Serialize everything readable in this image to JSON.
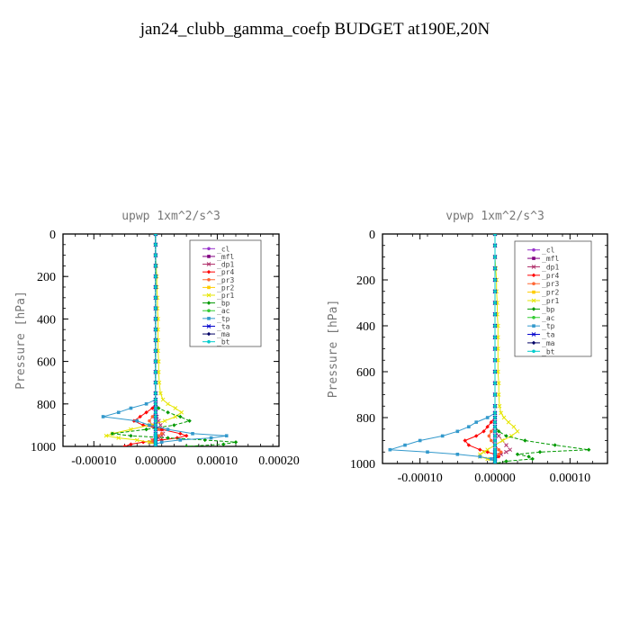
{
  "page_title": "jan24_clubb_gamma_coefp  BUDGET at190E,20N",
  "chart_data": [
    {
      "type": "line",
      "title": "upwp  1xm^2/s^3",
      "ylabel": "Pressure [hPa]",
      "xlabel": "",
      "xlim": [
        -0.00015,
        0.0002
      ],
      "ylim": [
        1000,
        0
      ],
      "xticks": [
        -0.0001,
        0.0,
        0.0001,
        0.0002
      ],
      "xtick_labels": [
        "-0.00010",
        "0.00000",
        "0.00010",
        "0.00020"
      ],
      "yticks": [
        0,
        200,
        400,
        600,
        800,
        1000
      ],
      "ytick_labels": [
        "0",
        "200",
        "400",
        "600",
        "800",
        "1000"
      ],
      "grid": false,
      "legend_position": "top-right",
      "pressure": [
        0,
        50,
        100,
        150,
        200,
        250,
        300,
        350,
        400,
        450,
        500,
        550,
        600,
        650,
        700,
        750,
        780,
        800,
        820,
        840,
        860,
        880,
        900,
        920,
        940,
        950,
        960,
        970,
        980,
        990,
        1000
      ],
      "series": [
        {
          "name": "_cl",
          "color": "#9933cc",
          "values": [
            0,
            0,
            0,
            0,
            0,
            0,
            0,
            0,
            0,
            0,
            0,
            0,
            0,
            0,
            0,
            0,
            0,
            0,
            0,
            0,
            0,
            0,
            0,
            0,
            0,
            0,
            0,
            0,
            0,
            0,
            0
          ]
        },
        {
          "name": "_mfl",
          "color": "#800080",
          "values": [
            0,
            0,
            0,
            0,
            0,
            0,
            0,
            0,
            0,
            0,
            0,
            0,
            0,
            0,
            0,
            0,
            0,
            0,
            0,
            0,
            0,
            0,
            0,
            0,
            0,
            0,
            0,
            0,
            0,
            0,
            0
          ]
        },
        {
          "name": "_dp1",
          "color": "#b0306a",
          "values": [
            0,
            0,
            0,
            0,
            0,
            0,
            0,
            0,
            0,
            0,
            0,
            0,
            0,
            0,
            0,
            0,
            0,
            0,
            0,
            0,
            2e-06,
            5e-06,
            8e-06,
            1e-05,
            1.2e-05,
            1e-05,
            5e-06,
            -5e-06,
            -8e-06,
            0,
            0
          ]
        },
        {
          "name": "_pr4",
          "color": "#ff0000",
          "values": [
            0,
            0,
            0,
            0,
            0,
            0,
            0,
            0,
            0,
            0,
            0,
            0,
            0,
            0,
            0,
            0,
            0,
            0,
            -5e-06,
            -1.5e-05,
            -2.5e-05,
            -3.5e-05,
            -2e-05,
            1e-05,
            4e-05,
            5e-05,
            3.5e-05,
            1e-05,
            -2e-05,
            -4e-05,
            -5e-05
          ]
        },
        {
          "name": "_pr3",
          "color": "#ff6633",
          "values": [
            0,
            0,
            0,
            0,
            0,
            0,
            0,
            0,
            0,
            0,
            0,
            0,
            0,
            0,
            0,
            0,
            0,
            0,
            0,
            0,
            -5e-06,
            -1e-05,
            -5e-06,
            5e-06,
            1e-05,
            5e-06,
            0,
            -5e-06,
            -5e-06,
            0,
            0
          ]
        },
        {
          "name": "_pr2",
          "color": "#ffcc00",
          "values": [
            0,
            0,
            0,
            0,
            0,
            0,
            0,
            0,
            0,
            0,
            0,
            0,
            0,
            0,
            0,
            0,
            0,
            0,
            0,
            0,
            0,
            0,
            0,
            0,
            0,
            0,
            0,
            0,
            0,
            0,
            0
          ]
        },
        {
          "name": "_pr1",
          "color": "#e6e600",
          "values": [
            0,
            0,
            0,
            1e-06,
            2e-06,
            2e-06,
            3e-06,
            3e-06,
            4e-06,
            4e-06,
            4e-06,
            4e-06,
            5e-06,
            5e-06,
            6e-06,
            8e-06,
            1.2e-05,
            2e-05,
            3.2e-05,
            4.2e-05,
            3.2e-05,
            1.5e-05,
            -1e-05,
            -4e-05,
            -7e-05,
            -8e-05,
            -6e-05,
            -3e-05,
            -1e-05,
            0,
            0
          ]
        },
        {
          "name": "_bp",
          "color": "#009900",
          "values": [
            0,
            0,
            0,
            0,
            0,
            0,
            0,
            0,
            0,
            0,
            0,
            0,
            0,
            0,
            0,
            0,
            0,
            0,
            5e-06,
            2e-05,
            4e-05,
            5.5e-05,
            3e-05,
            -1.5e-05,
            -7e-05,
            -4e-05,
            2e-05,
            8e-05,
            0.00013,
            0.00011,
            5e-05
          ]
        },
        {
          "name": "_ac",
          "color": "#33cc33",
          "values": [
            0,
            0,
            0,
            0,
            0,
            0,
            0,
            0,
            0,
            0,
            0,
            0,
            0,
            0,
            0,
            0,
            0,
            0,
            0,
            0,
            0,
            0,
            0,
            0,
            0,
            0,
            0,
            0,
            0,
            0,
            0
          ]
        },
        {
          "name": "_tp",
          "color": "#3399cc",
          "values": [
            0,
            0,
            0,
            0,
            0,
            0,
            0,
            0,
            0,
            0,
            0,
            0,
            0,
            0,
            0,
            0,
            0,
            -1.5e-05,
            -4e-05,
            -6e-05,
            -8.5e-05,
            -3e-05,
            -1e-05,
            2e-05,
            6e-05,
            0.000115,
            9e-05,
            4e-05,
            1e-05,
            0,
            0
          ]
        },
        {
          "name": "_ta",
          "color": "#0000cc",
          "values": [
            0,
            0,
            0,
            0,
            0,
            0,
            0,
            0,
            0,
            0,
            0,
            0,
            0,
            0,
            0,
            0,
            0,
            0,
            0,
            0,
            0,
            0,
            0,
            0,
            0,
            0,
            0,
            0,
            0,
            0,
            0
          ]
        },
        {
          "name": "_ma",
          "color": "#000066",
          "values": [
            0,
            0,
            0,
            0,
            0,
            0,
            0,
            0,
            0,
            0,
            0,
            0,
            0,
            0,
            0,
            0,
            0,
            0,
            0,
            0,
            0,
            0,
            0,
            0,
            0,
            0,
            0,
            0,
            0,
            0,
            0
          ]
        },
        {
          "name": "_bt",
          "color": "#00cccc",
          "values": [
            0,
            0,
            0,
            0,
            0,
            0,
            0,
            0,
            0,
            0,
            0,
            0,
            0,
            0,
            0,
            0,
            0,
            0,
            0,
            0,
            0,
            0,
            0,
            0,
            0,
            0,
            0,
            0,
            0,
            0,
            0
          ]
        }
      ]
    },
    {
      "type": "line",
      "title": "vpwp  1xm^2/s^3",
      "ylabel": "Pressure [hPa]",
      "xlabel": "",
      "xlim": [
        -0.00015,
        0.00015
      ],
      "ylim": [
        1000,
        0
      ],
      "xticks": [
        -0.0001,
        0.0,
        0.0001
      ],
      "xtick_labels": [
        "-0.00010",
        "0.00000",
        "0.00010"
      ],
      "yticks": [
        0,
        200,
        400,
        600,
        800,
        1000
      ],
      "ytick_labels": [
        "0",
        "200",
        "400",
        "600",
        "800",
        "1000"
      ],
      "grid": false,
      "legend_position": "top-right",
      "pressure": [
        0,
        50,
        100,
        150,
        200,
        250,
        300,
        350,
        400,
        450,
        500,
        550,
        600,
        650,
        700,
        750,
        780,
        800,
        820,
        840,
        860,
        880,
        900,
        920,
        940,
        950,
        960,
        970,
        980,
        990,
        1000
      ],
      "series": [
        {
          "name": "_cl",
          "color": "#9933cc",
          "values": [
            0,
            0,
            0,
            0,
            0,
            0,
            0,
            0,
            0,
            0,
            0,
            0,
            0,
            0,
            0,
            0,
            0,
            0,
            0,
            0,
            0,
            0,
            0,
            0,
            0,
            0,
            0,
            0,
            0,
            0,
            0
          ]
        },
        {
          "name": "_mfl",
          "color": "#800080",
          "values": [
            0,
            0,
            0,
            0,
            0,
            0,
            0,
            0,
            0,
            0,
            0,
            0,
            0,
            0,
            0,
            0,
            0,
            0,
            0,
            0,
            0,
            0,
            0,
            0,
            0,
            0,
            0,
            0,
            0,
            0,
            0
          ]
        },
        {
          "name": "_dp1",
          "color": "#b0306a",
          "values": [
            0,
            0,
            0,
            0,
            0,
            0,
            0,
            0,
            0,
            0,
            0,
            0,
            0,
            0,
            0,
            0,
            0,
            0,
            0,
            0,
            0,
            5e-06,
            1e-05,
            1.5e-05,
            2e-05,
            1.5e-05,
            8e-06,
            0,
            0,
            0,
            0
          ]
        },
        {
          "name": "_pr4",
          "color": "#ff0000",
          "values": [
            0,
            0,
            0,
            0,
            0,
            0,
            0,
            0,
            0,
            0,
            0,
            0,
            0,
            0,
            0,
            0,
            0,
            0,
            -5e-06,
            -1e-05,
            -1.5e-05,
            -2.5e-05,
            -4e-05,
            -3.5e-05,
            -2e-05,
            -1e-05,
            0,
            5e-06,
            0,
            0,
            0
          ]
        },
        {
          "name": "_pr3",
          "color": "#ff6633",
          "values": [
            0,
            0,
            0,
            0,
            0,
            0,
            0,
            0,
            0,
            0,
            0,
            0,
            0,
            0,
            0,
            0,
            0,
            0,
            0,
            0,
            -5e-06,
            -8e-06,
            -5e-06,
            0,
            5e-06,
            8e-06,
            5e-06,
            0,
            0,
            0,
            0
          ]
        },
        {
          "name": "_pr2",
          "color": "#ffcc00",
          "values": [
            0,
            0,
            0,
            0,
            0,
            0,
            0,
            0,
            0,
            0,
            0,
            0,
            0,
            0,
            0,
            0,
            0,
            0,
            0,
            0,
            0,
            0,
            0,
            0,
            0,
            0,
            0,
            0,
            0,
            0,
            0
          ]
        },
        {
          "name": "_pr1",
          "color": "#e6e600",
          "values": [
            0,
            0,
            0,
            1e-06,
            2e-06,
            2e-06,
            3e-06,
            3e-06,
            4e-06,
            4e-06,
            4e-06,
            4e-06,
            4e-06,
            5e-06,
            5e-06,
            6e-06,
            8e-06,
            1.2e-05,
            1.8e-05,
            2.5e-05,
            3e-05,
            2.2e-05,
            1e-05,
            0,
            -1e-05,
            -1.5e-05,
            -2e-05,
            -2e-05,
            -1e-05,
            0,
            0
          ]
        },
        {
          "name": "_bp",
          "color": "#009900",
          "values": [
            0,
            0,
            0,
            0,
            0,
            0,
            0,
            0,
            0,
            0,
            0,
            0,
            0,
            0,
            0,
            0,
            0,
            0,
            0,
            0,
            5e-06,
            1.5e-05,
            4e-05,
            8e-05,
            0.000125,
            6e-05,
            3e-05,
            4.5e-05,
            5e-05,
            1.5e-05,
            0
          ]
        },
        {
          "name": "_ac",
          "color": "#33cc33",
          "values": [
            0,
            0,
            0,
            0,
            0,
            0,
            0,
            0,
            0,
            0,
            0,
            0,
            0,
            0,
            0,
            0,
            0,
            0,
            0,
            0,
            0,
            0,
            0,
            0,
            0,
            0,
            0,
            0,
            0,
            0,
            0
          ]
        },
        {
          "name": "_tp",
          "color": "#3399cc",
          "values": [
            0,
            0,
            0,
            0,
            0,
            0,
            0,
            0,
            0,
            0,
            0,
            0,
            0,
            0,
            0,
            0,
            0,
            -1e-05,
            -2.5e-05,
            -3.5e-05,
            -5e-05,
            -7e-05,
            -0.0001,
            -0.00012,
            -0.00014,
            -9e-05,
            -5e-05,
            -2e-05,
            -5e-06,
            0,
            0
          ]
        },
        {
          "name": "_ta",
          "color": "#0000cc",
          "values": [
            0,
            0,
            0,
            0,
            0,
            0,
            0,
            0,
            0,
            0,
            0,
            0,
            0,
            0,
            0,
            0,
            0,
            0,
            0,
            0,
            0,
            0,
            0,
            0,
            0,
            0,
            0,
            0,
            0,
            0,
            0
          ]
        },
        {
          "name": "_ma",
          "color": "#000066",
          "values": [
            0,
            0,
            0,
            0,
            0,
            0,
            0,
            0,
            0,
            0,
            0,
            0,
            0,
            0,
            0,
            0,
            0,
            0,
            0,
            0,
            0,
            0,
            0,
            0,
            0,
            0,
            0,
            0,
            0,
            0,
            0
          ]
        },
        {
          "name": "_bt",
          "color": "#00cccc",
          "values": [
            0,
            0,
            0,
            0,
            0,
            0,
            0,
            0,
            0,
            0,
            0,
            0,
            0,
            0,
            0,
            0,
            0,
            0,
            0,
            0,
            0,
            0,
            0,
            0,
            0,
            0,
            0,
            0,
            0,
            0,
            0
          ]
        }
      ]
    }
  ]
}
